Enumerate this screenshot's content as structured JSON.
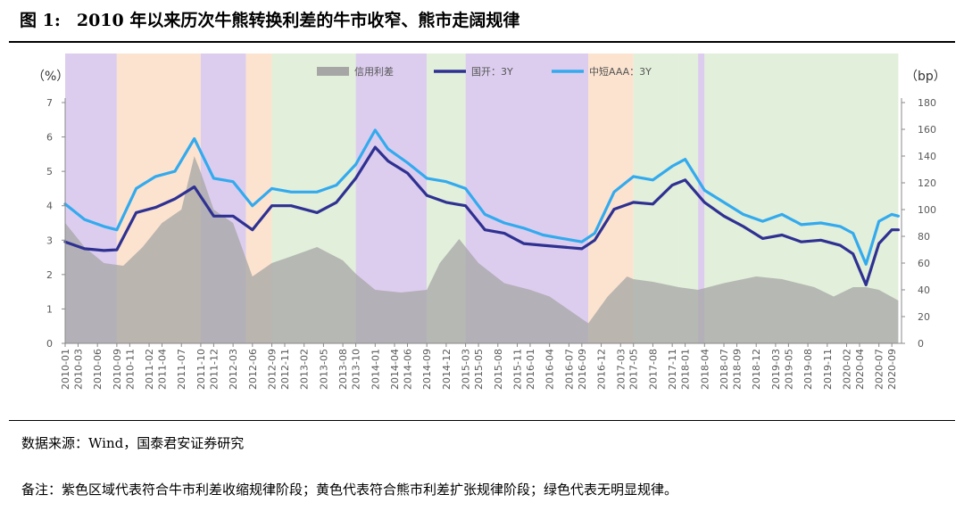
{
  "title": {
    "figure_no": "图 1:",
    "text": "2010 年以来历次牛熊转换利差的牛市收窄、熊市走阔规律"
  },
  "source": "数据来源：Wind，国泰君安证券研究",
  "note": "备注：紫色区域代表符合牛市利差收缩规律阶段；黄色代表符合熊市利差扩张规律阶段；绿色代表无明显规律。",
  "chart_data": {
    "type": "line",
    "y_left": {
      "unit": "（%）",
      "range": [
        0,
        7
      ],
      "ticks": [
        0,
        1,
        2,
        3,
        4,
        5,
        6,
        7
      ]
    },
    "y_right": {
      "unit": "（bp）",
      "range": [
        0,
        180
      ],
      "ticks": [
        0,
        20,
        40,
        60,
        80,
        100,
        120,
        140,
        160,
        180
      ]
    },
    "x_tick_labels": [
      "2010-01",
      "2010-03",
      "2010-06",
      "2010-09",
      "2010-11",
      "2011-02",
      "2011-04",
      "2011-07",
      "2011-10",
      "2011-12",
      "2012-03",
      "2012-06",
      "2012-09",
      "2012-11",
      "2013-02",
      "2013-05",
      "2013-08",
      "2013-10",
      "2014-01",
      "2014-04",
      "2014-06",
      "2014-09",
      "2014-12",
      "2015-03",
      "2015-05",
      "2015-08",
      "2015-11",
      "2016-01",
      "2016-04",
      "2016-07",
      "2016-09",
      "2016-12",
      "2017-03",
      "2017-05",
      "2017-08",
      "2017-11",
      "2018-01",
      "2018-04",
      "2018-07",
      "2018-09",
      "2018-12",
      "2019-03",
      "2019-05",
      "2019-08",
      "2019-11",
      "2020-02",
      "2020-04",
      "2020-07",
      "2020-09"
    ],
    "regimes": [
      {
        "start": "2010-01",
        "end": "2010-09",
        "type": "bull"
      },
      {
        "start": "2010-09",
        "end": "2011-10",
        "type": "bear"
      },
      {
        "start": "2011-10",
        "end": "2012-05",
        "type": "bull"
      },
      {
        "start": "2012-05",
        "end": "2012-09",
        "type": "bear"
      },
      {
        "start": "2012-09",
        "end": "2013-10",
        "type": "none"
      },
      {
        "start": "2013-10",
        "end": "2014-09",
        "type": "bull"
      },
      {
        "start": "2014-09",
        "end": "2015-03",
        "type": "none"
      },
      {
        "start": "2015-03",
        "end": "2016-10",
        "type": "bull"
      },
      {
        "start": "2016-10",
        "end": "2017-05",
        "type": "bear"
      },
      {
        "start": "2017-05",
        "end": "2017-12",
        "type": "none"
      },
      {
        "start": "2017-12",
        "end": "2018-03",
        "type": "none"
      },
      {
        "start": "2018-03",
        "end": "2018-04",
        "type": "bull"
      },
      {
        "start": "2018-04",
        "end": "2020-10",
        "type": "none"
      }
    ],
    "regime_colors": {
      "bull": "#dccdee",
      "bear": "#fce3cf",
      "none": "#e2efda"
    },
    "series": [
      {
        "name": "信用利差",
        "kind": "area",
        "axis": "right",
        "color": "#a6a6a6",
        "x": [
          "2010-01",
          "2010-04",
          "2010-07",
          "2010-10",
          "2011-01",
          "2011-04",
          "2011-07",
          "2011-09",
          "2011-10",
          "2011-12",
          "2012-03",
          "2012-06",
          "2012-09",
          "2012-12",
          "2013-04",
          "2013-08",
          "2013-10",
          "2014-01",
          "2014-05",
          "2014-09",
          "2014-11",
          "2015-02",
          "2015-05",
          "2015-09",
          "2016-01",
          "2016-04",
          "2016-07",
          "2016-10",
          "2017-01",
          "2017-04",
          "2017-05",
          "2017-08",
          "2017-12",
          "2018-03",
          "2018-07",
          "2018-12",
          "2019-04",
          "2019-09",
          "2019-12",
          "2020-03",
          "2020-05",
          "2020-07",
          "2020-10"
        ],
        "values": [
          90,
          72,
          60,
          58,
          72,
          90,
          100,
          140,
          128,
          100,
          90,
          50,
          60,
          65,
          72,
          62,
          52,
          40,
          38,
          40,
          60,
          78,
          60,
          45,
          40,
          35,
          25,
          15,
          35,
          50,
          48,
          46,
          42,
          40,
          45,
          50,
          48,
          42,
          35,
          42,
          42,
          40,
          32
        ]
      },
      {
        "name": "国开：3Y",
        "kind": "line",
        "axis": "left",
        "color": "#2e3192",
        "x": [
          "2010-01",
          "2010-04",
          "2010-07",
          "2010-09",
          "2010-12",
          "2011-03",
          "2011-06",
          "2011-09",
          "2011-12",
          "2012-03",
          "2012-06",
          "2012-09",
          "2012-12",
          "2013-04",
          "2013-07",
          "2013-10",
          "2014-01",
          "2014-03",
          "2014-06",
          "2014-09",
          "2014-12",
          "2015-03",
          "2015-06",
          "2015-09",
          "2015-12",
          "2016-03",
          "2016-06",
          "2016-09",
          "2016-11",
          "2017-02",
          "2017-05",
          "2017-08",
          "2017-11",
          "2018-01",
          "2018-04",
          "2018-07",
          "2018-10",
          "2019-01",
          "2019-04",
          "2019-07",
          "2019-10",
          "2020-01",
          "2020-03",
          "2020-05",
          "2020-07",
          "2020-09",
          "2020-10"
        ],
        "values": [
          2.95,
          2.75,
          2.7,
          2.72,
          3.8,
          3.95,
          4.2,
          4.55,
          3.7,
          3.7,
          3.3,
          4.0,
          4.0,
          3.8,
          4.1,
          4.8,
          5.7,
          5.3,
          4.95,
          4.3,
          4.1,
          4.0,
          3.3,
          3.2,
          2.9,
          2.85,
          2.8,
          2.75,
          3.0,
          3.9,
          4.1,
          4.05,
          4.6,
          4.75,
          4.1,
          3.7,
          3.4,
          3.05,
          3.15,
          2.95,
          3.0,
          2.85,
          2.6,
          1.7,
          2.9,
          3.3,
          3.3
        ]
      },
      {
        "name": "中短AAA：3Y",
        "kind": "line",
        "axis": "left",
        "color": "#33aaee",
        "x": [
          "2010-01",
          "2010-04",
          "2010-07",
          "2010-09",
          "2010-12",
          "2011-03",
          "2011-06",
          "2011-09",
          "2011-12",
          "2012-03",
          "2012-06",
          "2012-09",
          "2012-12",
          "2013-04",
          "2013-07",
          "2013-10",
          "2014-01",
          "2014-03",
          "2014-06",
          "2014-09",
          "2014-12",
          "2015-03",
          "2015-06",
          "2015-09",
          "2015-12",
          "2016-03",
          "2016-06",
          "2016-09",
          "2016-11",
          "2017-02",
          "2017-05",
          "2017-08",
          "2017-11",
          "2018-01",
          "2018-04",
          "2018-07",
          "2018-10",
          "2019-01",
          "2019-04",
          "2019-07",
          "2019-10",
          "2020-01",
          "2020-03",
          "2020-05",
          "2020-07",
          "2020-09",
          "2020-10"
        ],
        "values": [
          4.05,
          3.6,
          3.4,
          3.3,
          4.5,
          4.85,
          5.0,
          5.95,
          4.8,
          4.7,
          4.0,
          4.5,
          4.4,
          4.4,
          4.6,
          5.2,
          6.2,
          5.65,
          5.25,
          4.8,
          4.7,
          4.5,
          3.75,
          3.5,
          3.35,
          3.15,
          3.05,
          2.95,
          3.2,
          4.4,
          4.85,
          4.75,
          5.15,
          5.35,
          4.45,
          4.1,
          3.75,
          3.55,
          3.75,
          3.45,
          3.5,
          3.4,
          3.2,
          2.3,
          3.55,
          3.75,
          3.7
        ]
      }
    ],
    "legend": {
      "placement": "top",
      "labels": [
        "信用利差",
        "国开：3Y",
        "中短AAA：3Y"
      ]
    }
  }
}
